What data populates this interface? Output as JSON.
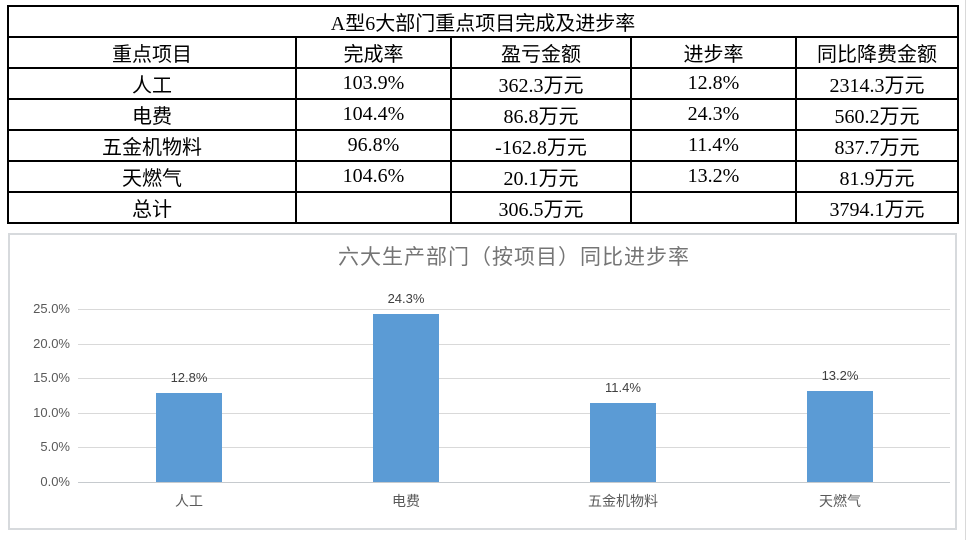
{
  "table": {
    "title": "A型6大部门重点项目完成及进步率",
    "headers": [
      "重点项目",
      "完成率",
      "盈亏金额",
      "进步率",
      "同比降费金额"
    ],
    "rows": [
      [
        "人工",
        "103.9%",
        "362.3万元",
        "12.8%",
        "2314.3万元"
      ],
      [
        "电费",
        "104.4%",
        "86.8万元",
        "24.3%",
        "560.2万元"
      ],
      [
        "五金机物料",
        "96.8%",
        "-162.8万元",
        "11.4%",
        "837.7万元"
      ],
      [
        "天燃气",
        "104.6%",
        "20.1万元",
        "13.2%",
        "81.9万元"
      ],
      [
        "总计",
        "",
        "306.5万元",
        "",
        "3794.1万元"
      ]
    ]
  },
  "chart_data": {
    "type": "bar",
    "title": "六大生产部门（按项目）同比进步率",
    "categories": [
      "人工",
      "电费",
      "五金机物料",
      "天燃气"
    ],
    "values": [
      12.8,
      24.3,
      11.4,
      13.2
    ],
    "value_labels": [
      "12.8%",
      "24.3%",
      "11.4%",
      "13.2%"
    ],
    "xlabel": "",
    "ylabel": "",
    "ylim": [
      0,
      25
    ],
    "y_ticks": [
      {
        "label": "0.0%",
        "value": 0
      },
      {
        "label": "5.0%",
        "value": 5
      },
      {
        "label": "10.0%",
        "value": 10
      },
      {
        "label": "15.0%",
        "value": 15
      },
      {
        "label": "20.0%",
        "value": 20
      },
      {
        "label": "25.0%",
        "value": 25
      }
    ],
    "grid": true,
    "legend": false,
    "bar_color": "#5B9BD5",
    "title_color": "#757575",
    "axis_label_color": "#595959",
    "gridline_color": "#D9D9D9",
    "axis_line_color": "#C6CACE"
  }
}
